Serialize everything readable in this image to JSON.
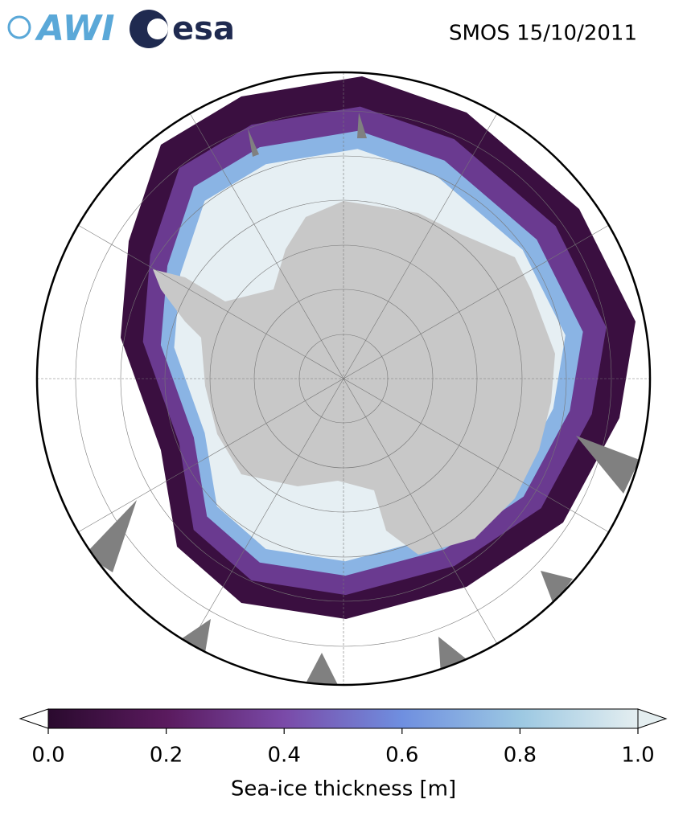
{
  "logos": [
    "AWI",
    "esa"
  ],
  "title": "SMOS 15/10/2011",
  "colorbar": {
    "label": "Sea-ice thickness [m]",
    "range": [
      0,
      1
    ],
    "ticks": [
      {
        "value": 0,
        "label": "0.0"
      },
      0.2,
      0.4,
      0.6,
      0.8,
      {
        "value": 1,
        "label": "1.0"
      }
    ],
    "colors": [
      "#2a0a2e",
      "#5a1a5e",
      "#7a4aa8",
      "#6f8fe0",
      "#9cc8e2",
      "#e4eef0"
    ]
  }
}
